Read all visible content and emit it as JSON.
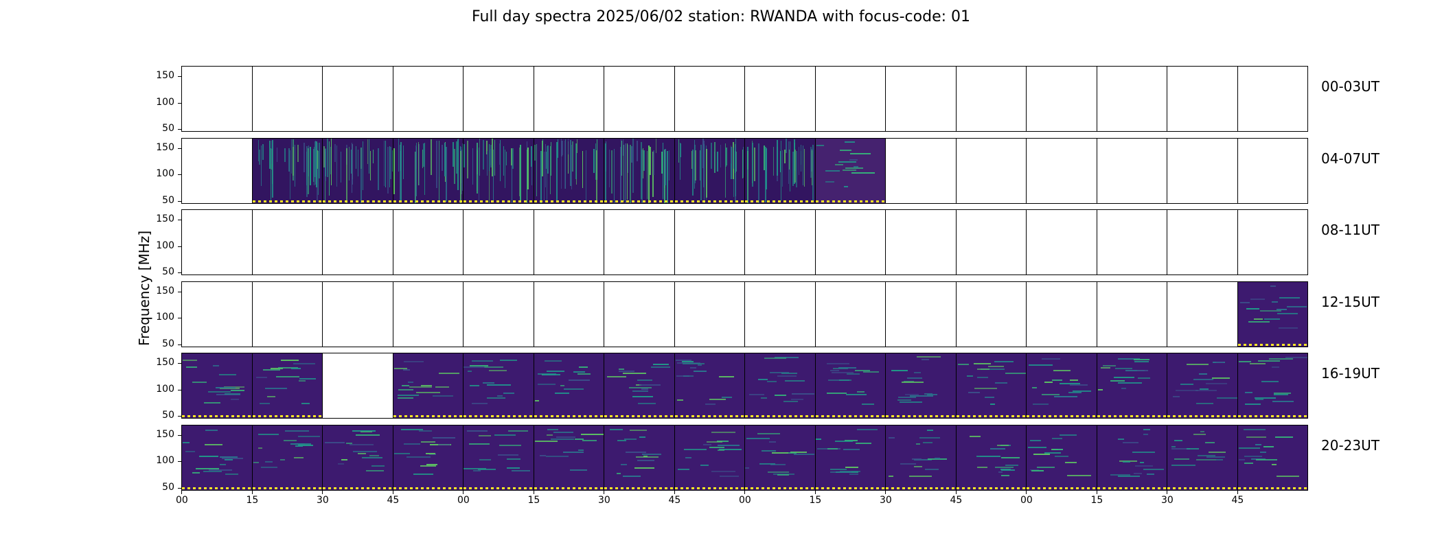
{
  "title": "Full day spectra 2025/06/02 station: RWANDA with focus-code: 01",
  "chart_data": {
    "type": "heatmap",
    "title": "Full day spectra 2025/06/02 station: RWANDA with focus-code: 01",
    "ylabel": "Frequency [MHz]",
    "xlabel": "",
    "y_ticks": [
      "50",
      "100",
      "150"
    ],
    "x_ticks": [
      "00",
      "15",
      "30",
      "45",
      "00",
      "15",
      "30",
      "45",
      "00",
      "15",
      "30",
      "45",
      "00",
      "15",
      "30",
      "45"
    ],
    "ylim": [
      45,
      170
    ],
    "colormap": "viridis",
    "rows": [
      {
        "label": "00-03UT",
        "panels": [
          "empty",
          "empty",
          "empty",
          "empty",
          "empty",
          "empty",
          "empty",
          "empty",
          "empty",
          "empty",
          "empty",
          "empty",
          "empty",
          "empty",
          "empty",
          "empty"
        ]
      },
      {
        "label": "04-07UT",
        "panels": [
          "empty",
          "busy",
          "busy",
          "busy",
          "busy",
          "busy",
          "busy",
          "busy",
          "busy",
          "quiet",
          "empty",
          "empty",
          "empty",
          "empty",
          "empty",
          "empty"
        ]
      },
      {
        "label": "08-11UT",
        "panels": [
          "empty",
          "empty",
          "empty",
          "empty",
          "empty",
          "empty",
          "empty",
          "empty",
          "empty",
          "empty",
          "empty",
          "empty",
          "empty",
          "empty",
          "empty",
          "empty"
        ]
      },
      {
        "label": "12-15UT",
        "panels": [
          "empty",
          "empty",
          "empty",
          "empty",
          "empty",
          "empty",
          "empty",
          "empty",
          "empty",
          "empty",
          "empty",
          "empty",
          "empty",
          "empty",
          "empty",
          "data"
        ]
      },
      {
        "label": "16-19UT",
        "panels": [
          "data",
          "data",
          "empty",
          "data",
          "data",
          "data",
          "data",
          "data",
          "data",
          "data",
          "data",
          "data",
          "data",
          "data",
          "data",
          "data"
        ]
      },
      {
        "label": "20-23UT",
        "panels": [
          "data",
          "data",
          "data",
          "data",
          "data",
          "data",
          "data",
          "data",
          "data",
          "data",
          "data",
          "data",
          "data",
          "data",
          "data",
          "data"
        ]
      }
    ]
  }
}
